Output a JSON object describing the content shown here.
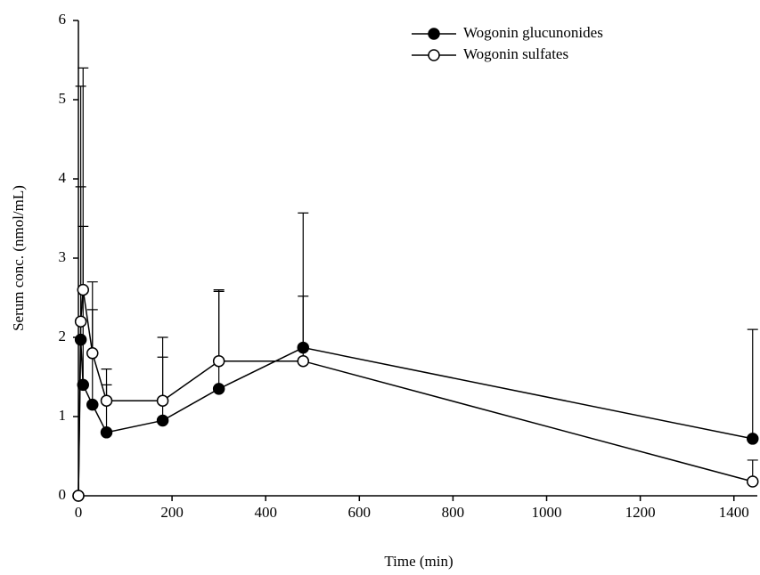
{
  "chart_data": {
    "type": "line",
    "x_label": "Time (min)",
    "y_label": "Serum conc. (nmol/mL)",
    "x": [
      0,
      5,
      10,
      30,
      60,
      180,
      300,
      480,
      1440
    ],
    "series": [
      {
        "name": "Wogonin glucunonides",
        "color": "#000000",
        "filled": true,
        "values": [
          0,
          1.97,
          1.4,
          1.15,
          0.8,
          0.95,
          1.35,
          1.87,
          0.72
        ],
        "errors": [
          null,
          3.2,
          2.0,
          1.2,
          0.6,
          0.8,
          1.25,
          1.7,
          1.38
        ]
      },
      {
        "name": "Wogonin sulfates",
        "color": "#000000",
        "filled": false,
        "values": [
          0,
          2.2,
          2.6,
          1.8,
          1.2,
          1.2,
          1.7,
          1.7,
          0.18
        ],
        "errors": [
          null,
          1.7,
          2.8,
          0.9,
          0.4,
          0.8,
          0.88,
          0.82,
          0.27
        ]
      }
    ],
    "xlim": [
      0,
      1450
    ],
    "ylim": [
      0,
      6
    ],
    "xticks": [
      0,
      200,
      400,
      600,
      800,
      1000,
      1200,
      1400
    ],
    "yticks": [
      0,
      1,
      2,
      3,
      4,
      5,
      6
    ],
    "legend": "upper right"
  }
}
